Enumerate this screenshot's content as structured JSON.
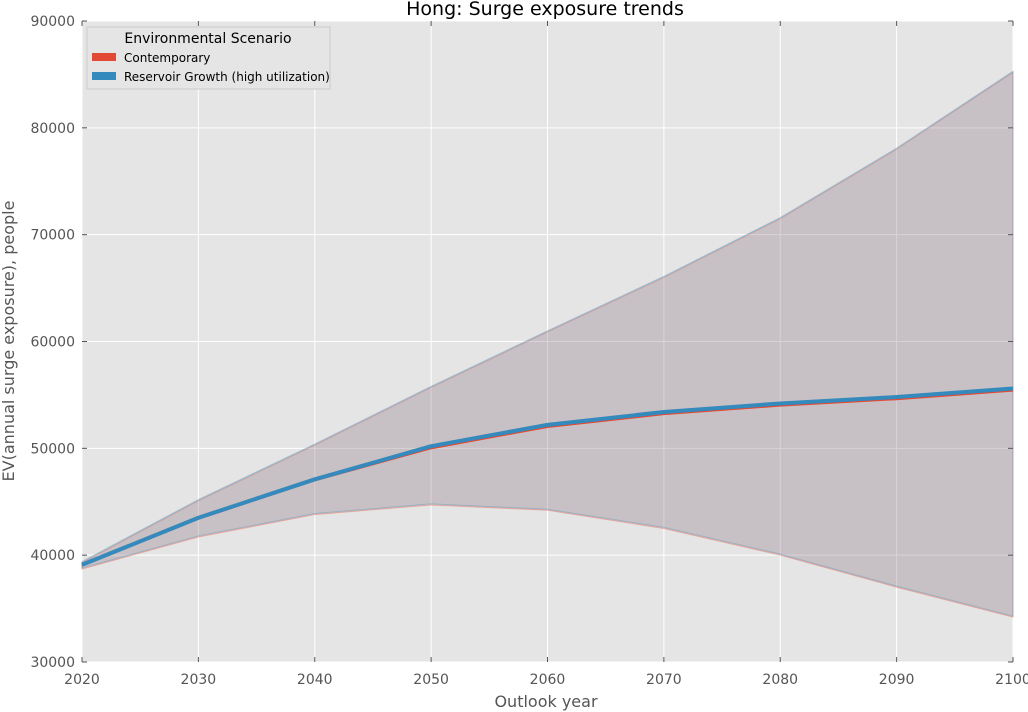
{
  "chart_data": {
    "type": "area",
    "title": "Hong: Surge exposure trends",
    "xlabel": "Outlook year",
    "ylabel": "EV(annual surge exposure), people",
    "xlim": [
      2020,
      2100
    ],
    "ylim": [
      30000,
      90000
    ],
    "x_ticks": [
      "2020",
      "2030",
      "2040",
      "2050",
      "2060",
      "2070",
      "2080",
      "2090",
      "2100"
    ],
    "y_ticks": [
      "30000",
      "40000",
      "50000",
      "60000",
      "70000",
      "80000",
      "90000"
    ],
    "x": [
      2020,
      2030,
      2040,
      2050,
      2060,
      2070,
      2080,
      2090,
      2100
    ],
    "grid": true,
    "legend": {
      "title": "Environmental Scenario",
      "location": "top-left"
    },
    "series": [
      {
        "name": "Contemporary",
        "color": "#E24A33",
        "values": [
          39000,
          43400,
          47000,
          50000,
          52000,
          53200,
          54000,
          54600,
          55400
        ],
        "band_low": [
          38700,
          41700,
          43800,
          44700,
          44200,
          42500,
          40000,
          37000,
          34200
        ],
        "band_high": [
          39300,
          45100,
          50300,
          55700,
          60900,
          66000,
          71500,
          78000,
          85200
        ]
      },
      {
        "name": "Reservoir Growth (high utilization)",
        "color": "#348ABD",
        "values": [
          39100,
          43500,
          47100,
          50200,
          52200,
          53400,
          54200,
          54800,
          55600
        ],
        "band_low": [
          38800,
          41800,
          43900,
          44800,
          44300,
          42600,
          40100,
          37100,
          34300
        ],
        "band_high": [
          39400,
          45200,
          50400,
          55800,
          61000,
          66100,
          71600,
          78100,
          85300
        ]
      }
    ],
    "colors": {
      "plot_background": "#E5E5E5",
      "grid": "#FFFFFF"
    }
  }
}
